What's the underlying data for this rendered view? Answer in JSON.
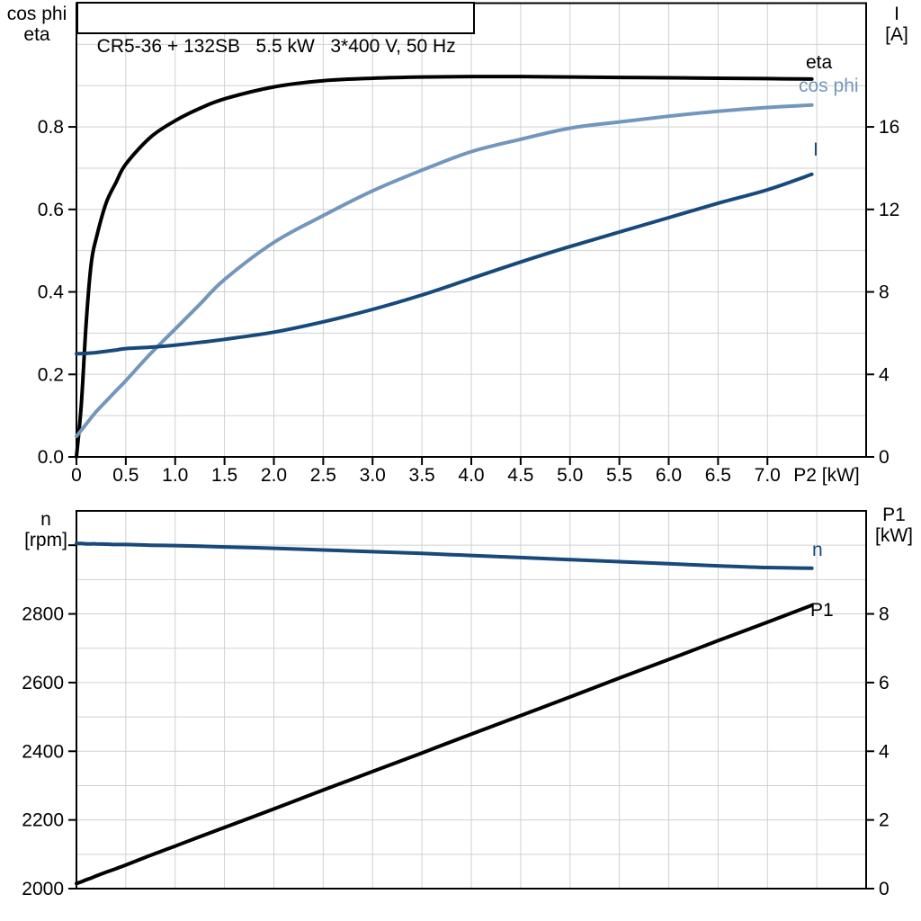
{
  "title": "CR5-36 + 132SB   5.5 kW   3*400 V, 50 Hz",
  "colors": {
    "black": "#000000",
    "light_blue": "#7296bd",
    "dark_blue": "#17497b",
    "grid": "#d0d0d0",
    "frame": "#000000",
    "background": "#ffffff"
  },
  "chart_data": [
    {
      "type": "line",
      "title": "CR5-36 + 132SB   5.5 kW   3*400 V, 50 Hz",
      "x_axis": {
        "label": "P2 [kW]",
        "min": 0,
        "max": 8,
        "grid_step": 0.5,
        "ticks": [
          [
            0,
            "0"
          ],
          [
            0.5,
            "0.5"
          ],
          [
            1,
            "1.0"
          ],
          [
            1.5,
            "1.5"
          ],
          [
            2,
            "2.0"
          ],
          [
            2.5,
            "2.5"
          ],
          [
            3,
            "3.0"
          ],
          [
            3.5,
            "3.5"
          ],
          [
            4,
            "4.0"
          ],
          [
            4.5,
            "4.5"
          ],
          [
            5,
            "5.0"
          ],
          [
            5.5,
            "5.5"
          ],
          [
            6,
            "6.0"
          ],
          [
            6.5,
            "6.5"
          ],
          [
            7,
            "7.0"
          ]
        ]
      },
      "left_axis": {
        "title_lines": [
          "cos phi",
          "eta"
        ],
        "min": 0,
        "max": 1.1,
        "grid_step": 0.1,
        "ticks": [
          [
            0,
            "0.0"
          ],
          [
            0.2,
            "0.2"
          ],
          [
            0.4,
            "0.4"
          ],
          [
            0.6,
            "0.6"
          ],
          [
            0.8,
            "0.8"
          ]
        ]
      },
      "right_axis": {
        "title_lines": [
          "I",
          "[A]"
        ],
        "min": 0,
        "max": 22,
        "ticks": [
          [
            0,
            "0"
          ],
          [
            4,
            "4"
          ],
          [
            8,
            "8"
          ],
          [
            12,
            "12"
          ],
          [
            16,
            "16"
          ]
        ]
      },
      "x": [
        0,
        0.05,
        0.1,
        0.15,
        0.2,
        0.3,
        0.4,
        0.5,
        0.75,
        1,
        1.25,
        1.5,
        2,
        2.5,
        3,
        3.5,
        4,
        4.5,
        5,
        5.5,
        6,
        6.5,
        7,
        7.45
      ],
      "series": [
        {
          "name": "eta",
          "label": "eta",
          "axis": "left",
          "color": "#000000",
          "values": [
            0,
            0.13,
            0.33,
            0.47,
            0.53,
            0.615,
            0.665,
            0.71,
            0.775,
            0.815,
            0.845,
            0.868,
            0.897,
            0.912,
            0.918,
            0.921,
            0.922,
            0.922,
            0.921,
            0.92,
            0.919,
            0.918,
            0.917,
            0.916
          ]
        },
        {
          "name": "cos phi",
          "label": "cos phi",
          "axis": "left",
          "color": "#7296bd",
          "values": [
            0.05,
            0.065,
            0.08,
            0.095,
            0.11,
            0.135,
            0.16,
            0.185,
            0.25,
            0.31,
            0.37,
            0.43,
            0.52,
            0.585,
            0.645,
            0.695,
            0.74,
            0.77,
            0.797,
            0.812,
            0.826,
            0.838,
            0.847,
            0.853
          ]
        },
        {
          "name": "I",
          "label": "I",
          "axis": "right",
          "color": "#17497b",
          "values": [
            5.0,
            5.01,
            5.02,
            5.04,
            5.06,
            5.12,
            5.18,
            5.25,
            5.32,
            5.42,
            5.55,
            5.7,
            6.05,
            6.55,
            7.15,
            7.85,
            8.65,
            9.45,
            10.2,
            10.9,
            11.6,
            12.3,
            12.95,
            13.7
          ]
        }
      ]
    },
    {
      "type": "line",
      "title": "",
      "x_axis": {
        "label": "",
        "min": 0,
        "max": 8,
        "grid_step": 0.5,
        "ticks": []
      },
      "left_axis": {
        "title_lines": [
          "n",
          "[rpm]"
        ],
        "min": 2000,
        "max": 3100,
        "grid_step": 100,
        "ticks": [
          [
            2000,
            "2000"
          ],
          [
            2200,
            "2200"
          ],
          [
            2400,
            "2400"
          ],
          [
            2600,
            "2600"
          ],
          [
            2800,
            "2800"
          ],
          [
            3000,
            ""
          ]
        ]
      },
      "right_axis": {
        "title_lines": [
          "P1",
          "[kW]"
        ],
        "min": 0,
        "max": 11,
        "ticks": [
          [
            0,
            "0"
          ],
          [
            2,
            "2"
          ],
          [
            4,
            "4"
          ],
          [
            6,
            "6"
          ],
          [
            8,
            "8"
          ]
        ]
      },
      "x": [
        0,
        0.05,
        0.1,
        0.15,
        0.2,
        0.3,
        0.4,
        0.5,
        0.75,
        1,
        1.25,
        1.5,
        2,
        2.5,
        3,
        3.5,
        4,
        4.5,
        5,
        5.5,
        6,
        6.5,
        7,
        7.45
      ],
      "series": [
        {
          "name": "n",
          "label": "n",
          "axis": "left",
          "color": "#17497b",
          "values": [
            3005,
            3005,
            3004,
            3004,
            3004,
            3003,
            3002,
            3002,
            3000,
            2999,
            2997,
            2995,
            2991,
            2986,
            2981,
            2976,
            2970,
            2964,
            2958,
            2952,
            2946,
            2940,
            2935,
            2933
          ]
        },
        {
          "name": "P1",
          "label": "P1",
          "axis": "right",
          "color": "#000000",
          "values": [
            0.15,
            0.2,
            0.26,
            0.31,
            0.37,
            0.48,
            0.58,
            0.69,
            0.97,
            1.24,
            1.51,
            1.78,
            2.32,
            2.87,
            3.41,
            3.95,
            4.5,
            5.04,
            5.58,
            6.13,
            6.67,
            7.22,
            7.76,
            8.25
          ]
        }
      ]
    }
  ]
}
